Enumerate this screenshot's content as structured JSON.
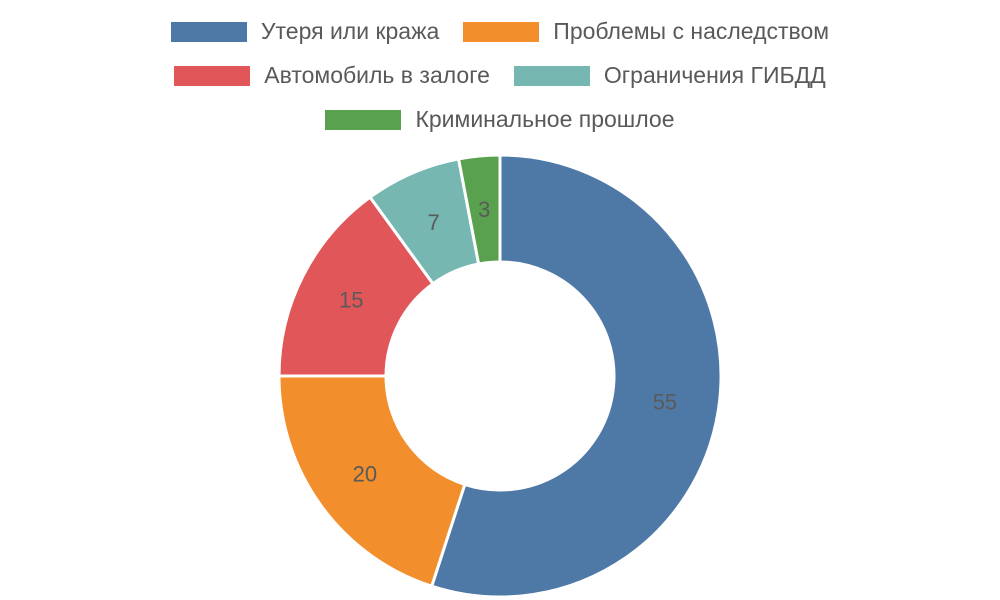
{
  "chart_data": {
    "type": "pie",
    "variant": "donut",
    "title": "",
    "legend_position": "top",
    "categories": [
      "Утеря или кража",
      "Проблемы с наследством",
      "Автомобиль в залоге",
      "Ограничения ГИБДД",
      "Криминальное прошлое"
    ],
    "values": [
      55,
      20,
      15,
      7,
      3
    ],
    "data_labels": [
      "55",
      "20",
      "15",
      "7",
      "3"
    ],
    "colors": [
      "#4e79a7",
      "#f28e2b",
      "#e15759",
      "#76b7b2",
      "#59a14f"
    ]
  }
}
